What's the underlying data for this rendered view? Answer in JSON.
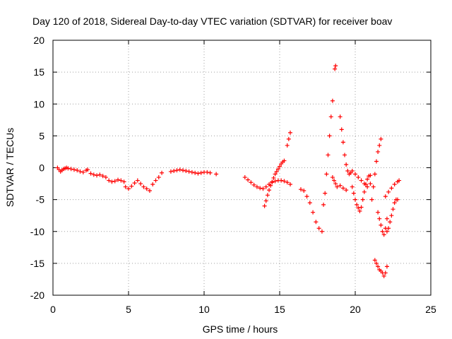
{
  "chart_data": {
    "type": "scatter",
    "title": "Day 120 of 2018, Sidereal Day-to-day VTEC variation (SDTVAR) for receiver boav",
    "xlabel": "GPS time / hours",
    "ylabel": "SDTVAR / TECUs",
    "xlim": [
      0,
      25
    ],
    "ylim": [
      -20,
      20
    ],
    "xticks": [
      0,
      5,
      10,
      15,
      20,
      25
    ],
    "yticks": [
      -20,
      -15,
      -10,
      -5,
      0,
      5,
      10,
      15,
      20
    ],
    "xtick_labels": [
      "0",
      "5",
      "10",
      "15",
      "20",
      "25"
    ],
    "ytick_labels": [
      "-20",
      "-15",
      "-10",
      "-5",
      "0",
      "5",
      "10",
      "15",
      "20"
    ],
    "grid": true,
    "marker": "+",
    "color": "#ff0000",
    "series": [
      {
        "name": "seg1",
        "x": [
          0.3,
          0.4,
          0.5,
          0.6,
          0.7,
          0.8,
          0.9,
          1.0,
          1.2,
          1.4,
          1.6,
          1.8,
          2.0,
          2.2,
          2.3
        ],
        "y": [
          0.0,
          -0.3,
          -0.6,
          -0.4,
          -0.2,
          -0.1,
          0.0,
          -0.1,
          -0.2,
          -0.3,
          -0.4,
          -0.6,
          -0.7,
          -0.4,
          -0.3
        ]
      },
      {
        "name": "seg2",
        "x": [
          2.5,
          2.7,
          2.9,
          3.1,
          3.3,
          3.5,
          3.7,
          3.9,
          4.1,
          4.3,
          4.5,
          4.7
        ],
        "y": [
          -0.9,
          -1.1,
          -1.2,
          -1.1,
          -1.3,
          -1.5,
          -2.0,
          -2.2,
          -2.1,
          -1.9,
          -2.0,
          -2.2
        ]
      },
      {
        "name": "seg3",
        "x": [
          4.8,
          5.0,
          5.2,
          5.4,
          5.6,
          5.8,
          6.0,
          6.2,
          6.4,
          6.6,
          6.8,
          7.0,
          7.2
        ],
        "y": [
          -3.0,
          -3.3,
          -2.9,
          -2.4,
          -2.0,
          -2.5,
          -3.0,
          -3.3,
          -3.6,
          -2.6,
          -2.0,
          -1.5,
          -0.8
        ]
      },
      {
        "name": "seg4",
        "x": [
          7.8,
          8.0,
          8.2,
          8.4,
          8.6,
          8.8,
          9.0,
          9.2,
          9.4,
          9.6,
          9.8,
          10.0,
          10.2,
          10.4,
          10.8
        ],
        "y": [
          -0.6,
          -0.5,
          -0.4,
          -0.3,
          -0.4,
          -0.5,
          -0.6,
          -0.7,
          -0.8,
          -0.9,
          -0.8,
          -0.7,
          -0.7,
          -0.8,
          -1.0
        ]
      },
      {
        "name": "seg5",
        "x": [
          12.7,
          12.9,
          13.1,
          13.3,
          13.5,
          13.7,
          13.9,
          14.1,
          14.3,
          14.5,
          14.7,
          14.9,
          15.1,
          15.3,
          15.5,
          15.7
        ],
        "y": [
          -1.5,
          -1.9,
          -2.3,
          -2.7,
          -3.0,
          -3.2,
          -3.3,
          -3.0,
          -2.6,
          -2.3,
          -2.1,
          -2.0,
          -2.0,
          -2.1,
          -2.3,
          -2.6
        ]
      },
      {
        "name": "seg6",
        "x": [
          14.0,
          14.1,
          14.2,
          14.3,
          14.4,
          14.5,
          14.6,
          14.7,
          14.8,
          14.9,
          15.0,
          15.1,
          15.2,
          15.3
        ],
        "y": [
          -6.0,
          -5.2,
          -4.3,
          -3.5,
          -2.8,
          -2.2,
          -1.6,
          -1.0,
          -0.6,
          -0.2,
          0.2,
          0.6,
          0.9,
          1.1
        ]
      },
      {
        "name": "seg7",
        "x": [
          15.5,
          15.6,
          15.7
        ],
        "y": [
          3.5,
          4.5,
          5.5
        ]
      },
      {
        "name": "seg8",
        "x": [
          16.4,
          16.6,
          16.8,
          17.0,
          17.2,
          17.4,
          17.6,
          17.8
        ],
        "y": [
          -3.4,
          -3.6,
          -4.5,
          -5.5,
          -7.0,
          -8.5,
          -9.5,
          -10.0
        ]
      },
      {
        "name": "seg9",
        "x": [
          17.9,
          18.0,
          18.1,
          18.2,
          18.3,
          18.4,
          18.5
        ],
        "y": [
          -5.8,
          -4.0,
          -1.0,
          2.0,
          5.0,
          8.0,
          10.5
        ]
      },
      {
        "name": "seg10",
        "x": [
          18.5,
          18.6,
          18.7,
          18.8,
          19.0,
          19.2,
          19.4
        ],
        "y": [
          -1.5,
          -2.0,
          -2.5,
          -3.0,
          -2.8,
          -3.2,
          -3.5
        ]
      },
      {
        "name": "seg11",
        "x": [
          18.65,
          18.7
        ],
        "y": [
          15.5,
          16.0
        ]
      },
      {
        "name": "seg12",
        "x": [
          19.0,
          19.1,
          19.2,
          19.3,
          19.4,
          19.5,
          19.6,
          19.7,
          19.8
        ],
        "y": [
          8.0,
          6.0,
          4.0,
          2.0,
          0.5,
          -0.5,
          -1.0,
          -0.8,
          -0.5
        ]
      },
      {
        "name": "seg13",
        "x": [
          19.8,
          19.9,
          20.0,
          20.1,
          20.2,
          20.3,
          20.4,
          20.5,
          20.6,
          20.7,
          20.8,
          20.9,
          21.0
        ],
        "y": [
          -3.0,
          -4.0,
          -5.0,
          -5.8,
          -6.3,
          -6.8,
          -6.2,
          -5.0,
          -3.8,
          -2.6,
          -1.8,
          -1.3,
          -1.2
        ]
      },
      {
        "name": "seg14",
        "x": [
          20.0,
          20.2,
          20.4,
          20.6,
          20.8,
          21.0
        ],
        "y": [
          -1.0,
          -1.5,
          -2.0,
          -2.5,
          -3.0,
          -2.5
        ]
      },
      {
        "name": "seg15",
        "x": [
          21.1,
          21.2,
          21.3,
          21.4,
          21.5,
          21.6,
          21.7
        ],
        "y": [
          -5.0,
          -3.0,
          -1.0,
          1.0,
          2.5,
          3.5,
          4.5
        ]
      },
      {
        "name": "seg16",
        "x": [
          21.3,
          21.4,
          21.5,
          21.6,
          21.7,
          21.8,
          21.9,
          22.0,
          22.1
        ],
        "y": [
          -14.5,
          -15.0,
          -15.5,
          -16.0,
          -16.2,
          -16.5,
          -17.0,
          -16.5,
          -15.5
        ]
      },
      {
        "name": "seg17",
        "x": [
          21.5,
          21.6,
          21.7,
          21.8,
          21.9,
          22.0,
          22.1
        ],
        "y": [
          -7.0,
          -8.0,
          -9.0,
          -10.0,
          -10.5,
          -9.5,
          -8.0
        ]
      },
      {
        "name": "seg18",
        "x": [
          22.0,
          22.2,
          22.4,
          22.6,
          22.8,
          22.9
        ],
        "y": [
          -4.5,
          -3.8,
          -3.2,
          -2.6,
          -2.2,
          -2.0
        ]
      },
      {
        "name": "seg19",
        "x": [
          22.1,
          22.2,
          22.3,
          22.4,
          22.5,
          22.6,
          22.7,
          22.8
        ],
        "y": [
          -10.0,
          -9.5,
          -8.5,
          -7.5,
          -6.5,
          -5.5,
          -5.0,
          -5.0
        ]
      }
    ]
  }
}
